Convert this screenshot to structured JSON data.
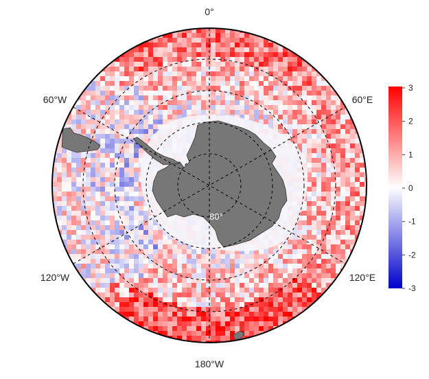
{
  "map": {
    "projection": "south-polar-stereographic",
    "longitude_labels": {
      "top": "0°",
      "upper_left": "60°W",
      "upper_right": "60°E",
      "lower_left": "120°W",
      "lower_right": "120°E",
      "bottom": "180°W"
    },
    "latitude_label": "80°",
    "land_color": "#777777",
    "ice_color": "#f3f3f8"
  },
  "colorbar": {
    "ticks": [
      "3",
      "2",
      "1",
      "0",
      "-1",
      "-2",
      "-3"
    ],
    "min": -3,
    "max": 3,
    "colors": {
      "high": "#ff0000",
      "mid": "#ffffff",
      "low": "#0000cc"
    }
  }
}
